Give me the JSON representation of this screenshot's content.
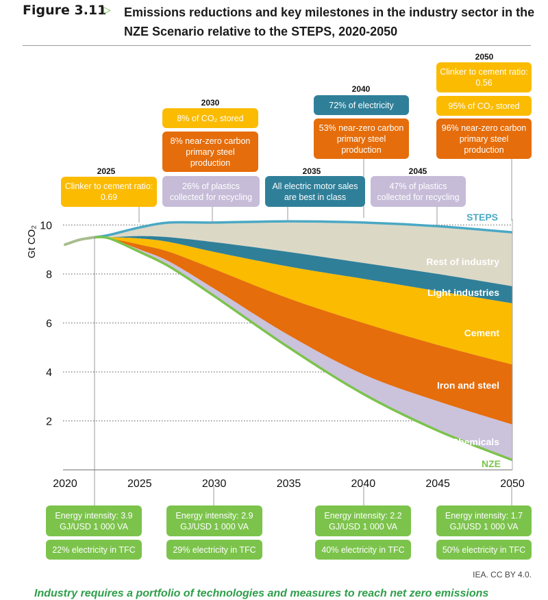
{
  "figure": {
    "number": "Figure 3.11",
    "arrow_icon": "triangle-right-icon",
    "title": "Emissions reductions and key milestones in the industry sector in the NZE Scenario relative to the STEPS, 2020-2050"
  },
  "colors": {
    "steps_line": "#4aa8c4",
    "rest_of_industry": "#dcd8c6",
    "light_industries": "#2f7f99",
    "cement": "#fbbb00",
    "iron_and_steel": "#e56d0b",
    "chemicals": "#cbc2dc",
    "nze_line": "#7cc34c",
    "history_line": "#a8bd8f",
    "box_yellow": "#fbbb00",
    "box_orange": "#e56d0b",
    "box_teal": "#2f7f99",
    "box_lilac": "#c6bcd8",
    "box_green": "#7cc34c"
  },
  "chart_data": {
    "type": "area",
    "title": "Emissions reductions and key milestones in the industry sector in the NZE Scenario relative to the STEPS, 2020-2050",
    "xlabel": "",
    "ylabel": "Gt CO2",
    "xlim": [
      2020,
      2050
    ],
    "ylim": [
      0,
      10.5
    ],
    "x_ticks": [
      "2020",
      "2025",
      "2030",
      "2035",
      "2040",
      "2045",
      "2050"
    ],
    "y_ticks": [
      "2",
      "4",
      "6",
      "8",
      "10"
    ],
    "grid": "horizontal-dotted",
    "x": [
      2020,
      2022,
      2023,
      2025,
      2027,
      2030,
      2035,
      2040,
      2045,
      2050
    ],
    "history": {
      "name": "Historical",
      "x": [
        2020,
        2021,
        2022
      ],
      "values": [
        9.2,
        9.4,
        9.5
      ]
    },
    "boundaries": {
      "steps": [
        9.2,
        9.5,
        9.6,
        9.9,
        10.1,
        10.1,
        10.15,
        10.1,
        9.95,
        9.7
      ],
      "rest_light": [
        9.2,
        9.5,
        9.5,
        9.55,
        9.5,
        9.3,
        8.9,
        8.45,
        8.0,
        7.5
      ],
      "light_cement": [
        9.2,
        9.5,
        9.5,
        9.45,
        9.3,
        8.9,
        8.3,
        7.8,
        7.3,
        6.8
      ],
      "cement_iron": [
        9.2,
        9.5,
        9.45,
        9.2,
        8.9,
        8.2,
        7.0,
        6.0,
        5.1,
        4.3
      ],
      "iron_chem": [
        9.2,
        9.5,
        9.45,
        9.0,
        8.5,
        7.4,
        5.5,
        3.9,
        2.8,
        1.85
      ],
      "nze": [
        9.2,
        9.5,
        9.45,
        8.9,
        8.3,
        7.1,
        5.0,
        3.1,
        1.6,
        0.4
      ]
    },
    "series": [
      {
        "name": "Rest of industry",
        "lower": "rest_light",
        "upper": "steps"
      },
      {
        "name": "Light industries",
        "lower": "light_cement",
        "upper": "rest_light"
      },
      {
        "name": "Cement",
        "lower": "cement_iron",
        "upper": "light_cement"
      },
      {
        "name": "Iron and steel",
        "lower": "iron_chem",
        "upper": "cement_iron"
      },
      {
        "name": "Chemicals",
        "lower": "nze",
        "upper": "iron_chem"
      }
    ],
    "line_labels": {
      "steps": "STEPS",
      "nze": "NZE"
    },
    "legend": "inline-right"
  },
  "milestones_top": [
    {
      "year": "2025",
      "boxes": [
        {
          "text": "Clinker to cement ratio: 0.69",
          "color": "yellow"
        }
      ]
    },
    {
      "year": "2030",
      "boxes": [
        {
          "text": "8% of CO₂ stored",
          "color": "yellow"
        },
        {
          "text": "8% near-zero carbon primary steel production",
          "color": "orange"
        },
        {
          "text": "26% of plastics collected for recycling",
          "color": "lilac"
        }
      ]
    },
    {
      "year": "2035",
      "boxes": [
        {
          "text": "All electric motor sales are best in class",
          "color": "teal"
        }
      ]
    },
    {
      "year": "2040",
      "boxes": [
        {
          "text": "72% of electricity",
          "color": "teal"
        },
        {
          "text": "53% near-zero carbon primary steel production",
          "color": "orange"
        }
      ]
    },
    {
      "year": "2045",
      "boxes": [
        {
          "text": "47% of plastics collected for recycling",
          "color": "lilac"
        }
      ]
    },
    {
      "year": "2050",
      "boxes": [
        {
          "text": "Clinker to cement ratio: 0.56",
          "color": "yellow"
        },
        {
          "text": "95% of CO₂ stored",
          "color": "yellow"
        },
        {
          "text": "96% near-zero carbon primary steel production",
          "color": "orange"
        }
      ]
    }
  ],
  "milestones_bottom": [
    {
      "energy_intensity": "Energy intensity: 3.9 GJ/USD 1 000 VA",
      "electricity": "22% electricity in TFC"
    },
    {
      "energy_intensity": "Energy intensity: 2.9 GJ/USD 1 000 VA",
      "electricity": "29% electricity in TFC"
    },
    {
      "energy_intensity": "Energy intensity: 2.2 GJ/USD 1 000 VA",
      "electricity": "40% electricity in TFC"
    },
    {
      "energy_intensity": "Energy intensity: 1.7 GJ/USD 1 000 VA",
      "electricity": "50% electricity in TFC"
    }
  ],
  "credit": "IEA. CC BY 4.0.",
  "caption": "Industry requires a portfolio of technologies and measures to reach net zero emissions"
}
